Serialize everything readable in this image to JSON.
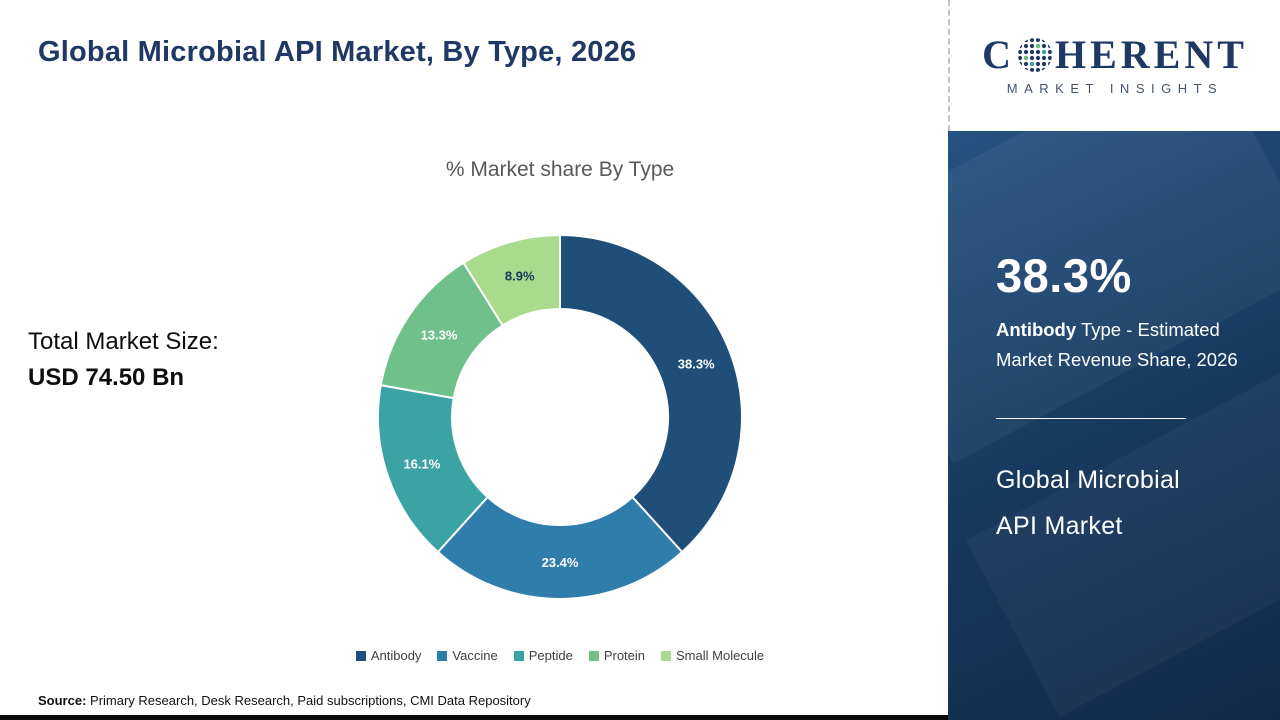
{
  "page": {
    "title": "Global Microbial API Market, By Type, 2026",
    "total_label": "Total Market Size:",
    "total_value": "USD 74.50 Bn",
    "source_label": "Source:",
    "source_text": " Primary Research, Desk Research, Paid subscriptions, CMI Data Repository"
  },
  "chart_data": {
    "type": "pie",
    "subtype": "donut",
    "title": "% Market share By Type",
    "categories": [
      "Antibody",
      "Vaccine",
      "Peptide",
      "Protein",
      "Small Molecule"
    ],
    "values": [
      38.3,
      23.4,
      16.1,
      13.3,
      8.9
    ],
    "labels": [
      "38.3%",
      "23.4%",
      "16.1%",
      "13.3%",
      "8.9%"
    ],
    "colors": [
      "#1F4E79",
      "#2E7DAB",
      "#3BA3A3",
      "#6FC08B",
      "#A9DB8C"
    ],
    "label_colors": [
      "#ffffff",
      "#ffffff",
      "#ffffff",
      "#ffffff",
      "#17375E"
    ],
    "start_angle_deg": -90,
    "legend_position": "bottom"
  },
  "sidebar": {
    "highlight_value": "38.3%",
    "highlight_bold": "Antibody",
    "highlight_rest": " Type - Estimated Market Revenue Share, 2026",
    "market_line1": "Global Microbial",
    "market_line2": "API Market",
    "logo_c": "C",
    "logo_rest": "HERENT",
    "logo_sub": "MARKET INSIGHTS"
  }
}
